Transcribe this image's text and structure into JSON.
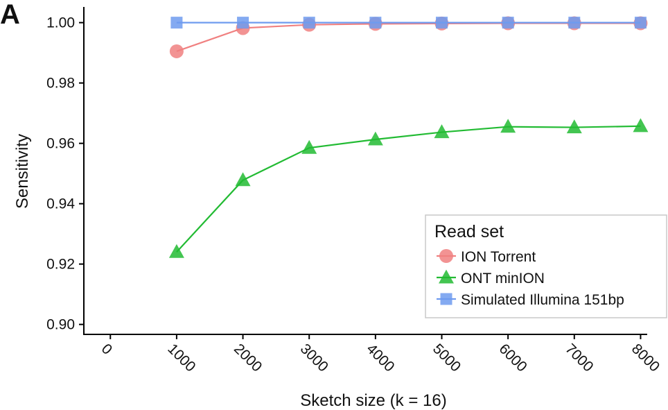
{
  "panel_label": "A",
  "chart_data": {
    "type": "line",
    "xlabel": "Sketch size (k = 16)",
    "ylabel": "Sensitivity",
    "x_ticks": [
      0,
      1000,
      2000,
      3000,
      4000,
      5000,
      6000,
      7000,
      8000
    ],
    "y_ticks": [
      "0.90",
      "0.92",
      "0.94",
      "0.96",
      "0.98",
      "1.00"
    ],
    "xlim": [
      -400,
      8100
    ],
    "ylim": [
      0.8967,
      1.0052
    ],
    "grid": false,
    "legend": {
      "title": "Read set",
      "placement": "bottom-right"
    },
    "series": [
      {
        "name": "ION Torrent",
        "color": "#f08080",
        "marker": "circle",
        "x": [
          1000,
          2000,
          3000,
          4000,
          5000,
          6000,
          7000,
          8000
        ],
        "y": [
          0.9905,
          0.9982,
          0.9993,
          0.9996,
          0.9997,
          0.9998,
          0.9998,
          0.9998
        ]
      },
      {
        "name": "ONT minION",
        "color": "#22bb33",
        "marker": "triangle",
        "x": [
          1000,
          2000,
          3000,
          4000,
          5000,
          6000,
          7000,
          8000
        ],
        "y": [
          0.924,
          0.9478,
          0.9585,
          0.9613,
          0.9637,
          0.9655,
          0.9653,
          0.9657
        ]
      },
      {
        "name": "Simulated Illumina 151bp",
        "color": "#6f9bef",
        "marker": "square",
        "x": [
          1000,
          2000,
          3000,
          4000,
          5000,
          6000,
          7000,
          8000
        ],
        "y": [
          1.0,
          1.0,
          1.0,
          1.0,
          1.0,
          1.0,
          1.0,
          1.0
        ]
      }
    ]
  }
}
